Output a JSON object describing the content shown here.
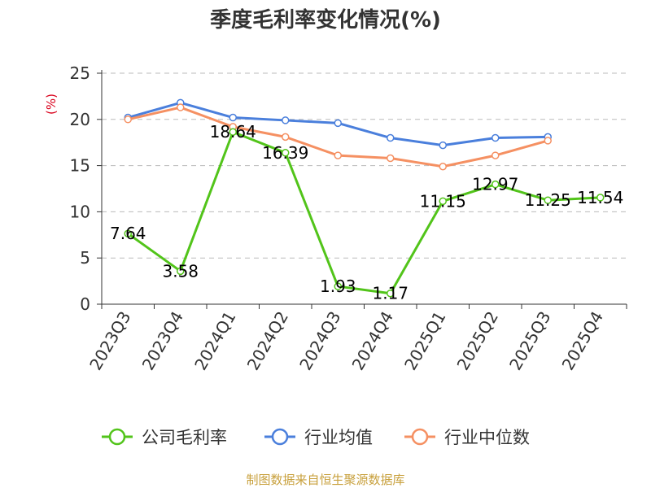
{
  "chart_data": {
    "type": "line",
    "title": "季度毛利率变化情况(%)",
    "ylabel": "(%)",
    "xlabel": "",
    "ylim": [
      0,
      25
    ],
    "yticks": [
      0,
      5,
      10,
      15,
      20,
      25
    ],
    "grid": true,
    "legend_position": "bottom",
    "categories": [
      "2023Q3",
      "2023Q4",
      "2024Q1",
      "2024Q2",
      "2024Q3",
      "2024Q4",
      "2025Q1",
      "2025Q2",
      "2025Q3",
      "2025Q4"
    ],
    "series": [
      {
        "name": "公司毛利率",
        "color": "#52c41a",
        "values": [
          7.64,
          3.58,
          18.64,
          16.39,
          1.93,
          1.17,
          11.15,
          12.97,
          11.25,
          11.54
        ],
        "labels": [
          "7.64",
          "3.58",
          "18.64",
          "16.39",
          "1.93",
          "1.17",
          "11.15",
          "12.97",
          "11.25",
          "11.54"
        ]
      },
      {
        "name": "行业均值",
        "color": "#4a7fdc",
        "values": [
          20.2,
          21.8,
          20.2,
          19.9,
          19.6,
          18.0,
          17.2,
          18.0,
          18.1,
          null
        ]
      },
      {
        "name": "行业中位数",
        "color": "#f59062",
        "values": [
          20.0,
          21.3,
          19.2,
          18.1,
          16.1,
          15.8,
          14.9,
          16.1,
          17.7,
          null
        ]
      }
    ]
  },
  "footer": {
    "source": "制图数据来自恒生聚源数据库"
  }
}
